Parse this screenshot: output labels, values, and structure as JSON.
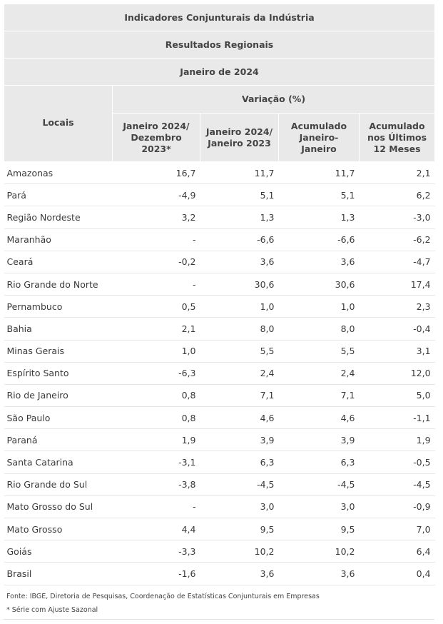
{
  "header": {
    "title": "Indicadores Conjunturais da Indústria",
    "subtitle": "Resultados Regionais",
    "period": "Janeiro de 2024",
    "locais": "Locais",
    "variacao": "Variação (%)",
    "columns": [
      "Janeiro 2024/ Dezembro 2023*",
      "Janeiro 2024/ Janeiro 2023",
      "Acumulado Janeiro-Janeiro",
      "Acumulado nos Últimos 12 Meses"
    ]
  },
  "rows": [
    {
      "local": "Amazonas",
      "v": [
        "16,7",
        "11,7",
        "11,7",
        "2,1"
      ]
    },
    {
      "local": "Pará",
      "v": [
        "-4,9",
        "5,1",
        "5,1",
        "6,2"
      ]
    },
    {
      "local": "Região Nordeste",
      "v": [
        "3,2",
        "1,3",
        "1,3",
        "-3,0"
      ]
    },
    {
      "local": "Maranhão",
      "v": [
        "-",
        "-6,6",
        "-6,6",
        "-6,2"
      ]
    },
    {
      "local": "Ceará",
      "v": [
        "-0,2",
        "3,6",
        "3,6",
        "-4,7"
      ]
    },
    {
      "local": "Rio Grande do Norte",
      "v": [
        "-",
        "30,6",
        "30,6",
        "17,4"
      ]
    },
    {
      "local": "Pernambuco",
      "v": [
        "0,5",
        "1,0",
        "1,0",
        "2,3"
      ]
    },
    {
      "local": "Bahia",
      "v": [
        "2,1",
        "8,0",
        "8,0",
        "-0,4"
      ]
    },
    {
      "local": "Minas Gerais",
      "v": [
        "1,0",
        "5,5",
        "5,5",
        "3,1"
      ]
    },
    {
      "local": "Espírito Santo",
      "v": [
        "-6,3",
        "2,4",
        "2,4",
        "12,0"
      ]
    },
    {
      "local": "Rio de Janeiro",
      "v": [
        "0,8",
        "7,1",
        "7,1",
        "5,0"
      ]
    },
    {
      "local": "São Paulo",
      "v": [
        "0,8",
        "4,6",
        "4,6",
        "-1,1"
      ]
    },
    {
      "local": "Paraná",
      "v": [
        "1,9",
        "3,9",
        "3,9",
        "1,9"
      ]
    },
    {
      "local": "Santa Catarina",
      "v": [
        "-3,1",
        "6,3",
        "6,3",
        "-0,5"
      ]
    },
    {
      "local": "Rio Grande do Sul",
      "v": [
        "-3,8",
        "-4,5",
        "-4,5",
        "-4,5"
      ]
    },
    {
      "local": "Mato Grosso do Sul",
      "v": [
        "-",
        "3,0",
        "3,0",
        "-0,9"
      ]
    },
    {
      "local": "Mato Grosso",
      "v": [
        "4,4",
        "9,5",
        "9,5",
        "7,0"
      ]
    },
    {
      "local": "Goiás",
      "v": [
        "-3,3",
        "10,2",
        "10,2",
        "6,4"
      ]
    },
    {
      "local": "Brasil",
      "v": [
        "-1,6",
        "3,6",
        "3,6",
        "0,4"
      ]
    }
  ],
  "footer": {
    "source": "Fonte: IBGE, Diretoria de Pesquisas, Coordenação de Estatísticas Conjunturais em Empresas",
    "note": "* Série com Ajuste Sazonal"
  }
}
